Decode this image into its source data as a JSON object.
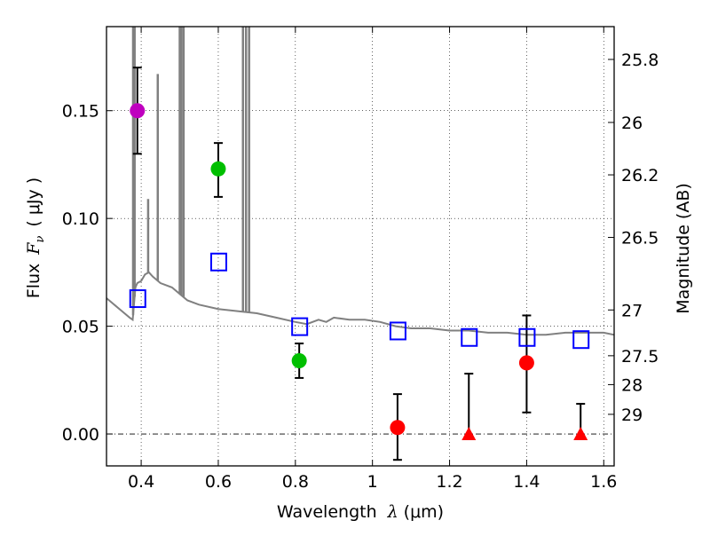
{
  "chart_data": {
    "type": "scatter",
    "xlabel_prefix": "Wavelength",
    "xlabel_symbol": "λ",
    "xlabel_units": "(μm)",
    "ylabel_prefix": "Flux",
    "ylabel_symbol": "F",
    "ylabel_sub": "ν",
    "ylabel_units": "( μJy )",
    "y2label": "Magnitude (AB)",
    "xlim": [
      0.31,
      1.627
    ],
    "ylim": [
      -0.0148,
      0.189
    ],
    "grid": true,
    "x_ticks": [
      0.4,
      0.6,
      0.8,
      1.0,
      1.2,
      1.4,
      1.6
    ],
    "x_tick_labels": [
      "0.4",
      "0.6",
      "0.8",
      "1",
      "1.2",
      "1.4",
      "1.6"
    ],
    "y_ticks": [
      0.0,
      0.05,
      0.1,
      0.15
    ],
    "y_tick_labels": [
      "0.00",
      "0.05",
      "0.10",
      "0.15"
    ],
    "y2_ticks": [
      {
        "label": "25.8",
        "mag": 25.8
      },
      {
        "label": "26",
        "mag": 26.0
      },
      {
        "label": "26.2",
        "mag": 26.2
      },
      {
        "label": "26.5",
        "mag": 26.5
      },
      {
        "label": "27",
        "mag": 27.0
      },
      {
        "label": "27.5",
        "mag": 27.5
      },
      {
        "label": "28",
        "mag": 28.0
      },
      {
        "label": "29",
        "mag": 29.0
      }
    ],
    "zero_line": 0.0,
    "series": [
      {
        "name": "photometry-detections",
        "marker": "circle",
        "points": [
          {
            "x": 0.39,
            "y": 0.15,
            "yerr_lo": 0.13,
            "yerr_hi": 0.17,
            "color": "#bf00bf"
          },
          {
            "x": 0.6,
            "y": 0.123,
            "yerr_lo": 0.11,
            "yerr_hi": 0.135,
            "color": "#00bf00"
          },
          {
            "x": 0.81,
            "y": 0.034,
            "yerr_lo": 0.026,
            "yerr_hi": 0.042,
            "color": "#00bf00"
          },
          {
            "x": 1.065,
            "y": 0.003,
            "yerr_lo": -0.012,
            "yerr_hi": 0.0185,
            "color": "#ff0000"
          },
          {
            "x": 1.4,
            "y": 0.033,
            "yerr_lo": 0.01,
            "yerr_hi": 0.055,
            "color": "#ff0000"
          }
        ]
      },
      {
        "name": "photometry-upper-limits",
        "marker": "triangle",
        "points": [
          {
            "x": 1.25,
            "y": 0.0,
            "yerr_lo": 0.0,
            "yerr_hi": 0.028,
            "color": "#ff0000"
          },
          {
            "x": 1.54,
            "y": 0.0,
            "yerr_lo": 0.0,
            "yerr_hi": 0.014,
            "color": "#ff0000"
          }
        ]
      },
      {
        "name": "model-synthetic-photometry",
        "marker": "open-square",
        "color": "#0000ff",
        "points": [
          {
            "x": 0.39,
            "y": 0.063
          },
          {
            "x": 0.6,
            "y": 0.08
          },
          {
            "x": 0.81,
            "y": 0.05
          },
          {
            "x": 1.065,
            "y": 0.048
          },
          {
            "x": 1.25,
            "y": 0.045
          },
          {
            "x": 1.4,
            "y": 0.045
          },
          {
            "x": 1.54,
            "y": 0.044
          }
        ]
      },
      {
        "name": "model-spectrum",
        "marker": "line",
        "color": "#808080",
        "continuum": [
          [
            0.31,
            0.063
          ],
          [
            0.33,
            0.06
          ],
          [
            0.35,
            0.057
          ],
          [
            0.37,
            0.054
          ],
          [
            0.378,
            0.053
          ],
          [
            0.385,
            0.068
          ],
          [
            0.39,
            0.07
          ],
          [
            0.4,
            0.071
          ],
          [
            0.41,
            0.074
          ],
          [
            0.42,
            0.075
          ],
          [
            0.43,
            0.073
          ],
          [
            0.45,
            0.07
          ],
          [
            0.48,
            0.068
          ],
          [
            0.5,
            0.065
          ],
          [
            0.52,
            0.062
          ],
          [
            0.55,
            0.06
          ],
          [
            0.6,
            0.058
          ],
          [
            0.65,
            0.057
          ],
          [
            0.7,
            0.056
          ],
          [
            0.75,
            0.054
          ],
          [
            0.8,
            0.052
          ],
          [
            0.83,
            0.051
          ],
          [
            0.86,
            0.053
          ],
          [
            0.88,
            0.052
          ],
          [
            0.9,
            0.054
          ],
          [
            0.94,
            0.053
          ],
          [
            0.98,
            0.053
          ],
          [
            1.02,
            0.052
          ],
          [
            1.06,
            0.05
          ],
          [
            1.1,
            0.049
          ],
          [
            1.15,
            0.049
          ],
          [
            1.2,
            0.048
          ],
          [
            1.25,
            0.048
          ],
          [
            1.3,
            0.047
          ],
          [
            1.35,
            0.047
          ],
          [
            1.4,
            0.046
          ],
          [
            1.45,
            0.046
          ],
          [
            1.5,
            0.047
          ],
          [
            1.55,
            0.047
          ],
          [
            1.6,
            0.047
          ],
          [
            1.627,
            0.046
          ]
        ],
        "emission_lines": [
          {
            "x": 0.379,
            "peak": 0.19
          },
          {
            "x": 0.383,
            "peak": 0.19
          },
          {
            "x": 0.418,
            "peak": 0.109
          },
          {
            "x": 0.443,
            "peak": 0.167
          },
          {
            "x": 0.5,
            "peak": 0.19
          },
          {
            "x": 0.504,
            "peak": 0.19
          },
          {
            "x": 0.51,
            "peak": 0.19
          },
          {
            "x": 0.664,
            "peak": 0.19
          },
          {
            "x": 0.672,
            "peak": 0.19
          },
          {
            "x": 0.68,
            "peak": 0.19
          }
        ]
      }
    ]
  }
}
